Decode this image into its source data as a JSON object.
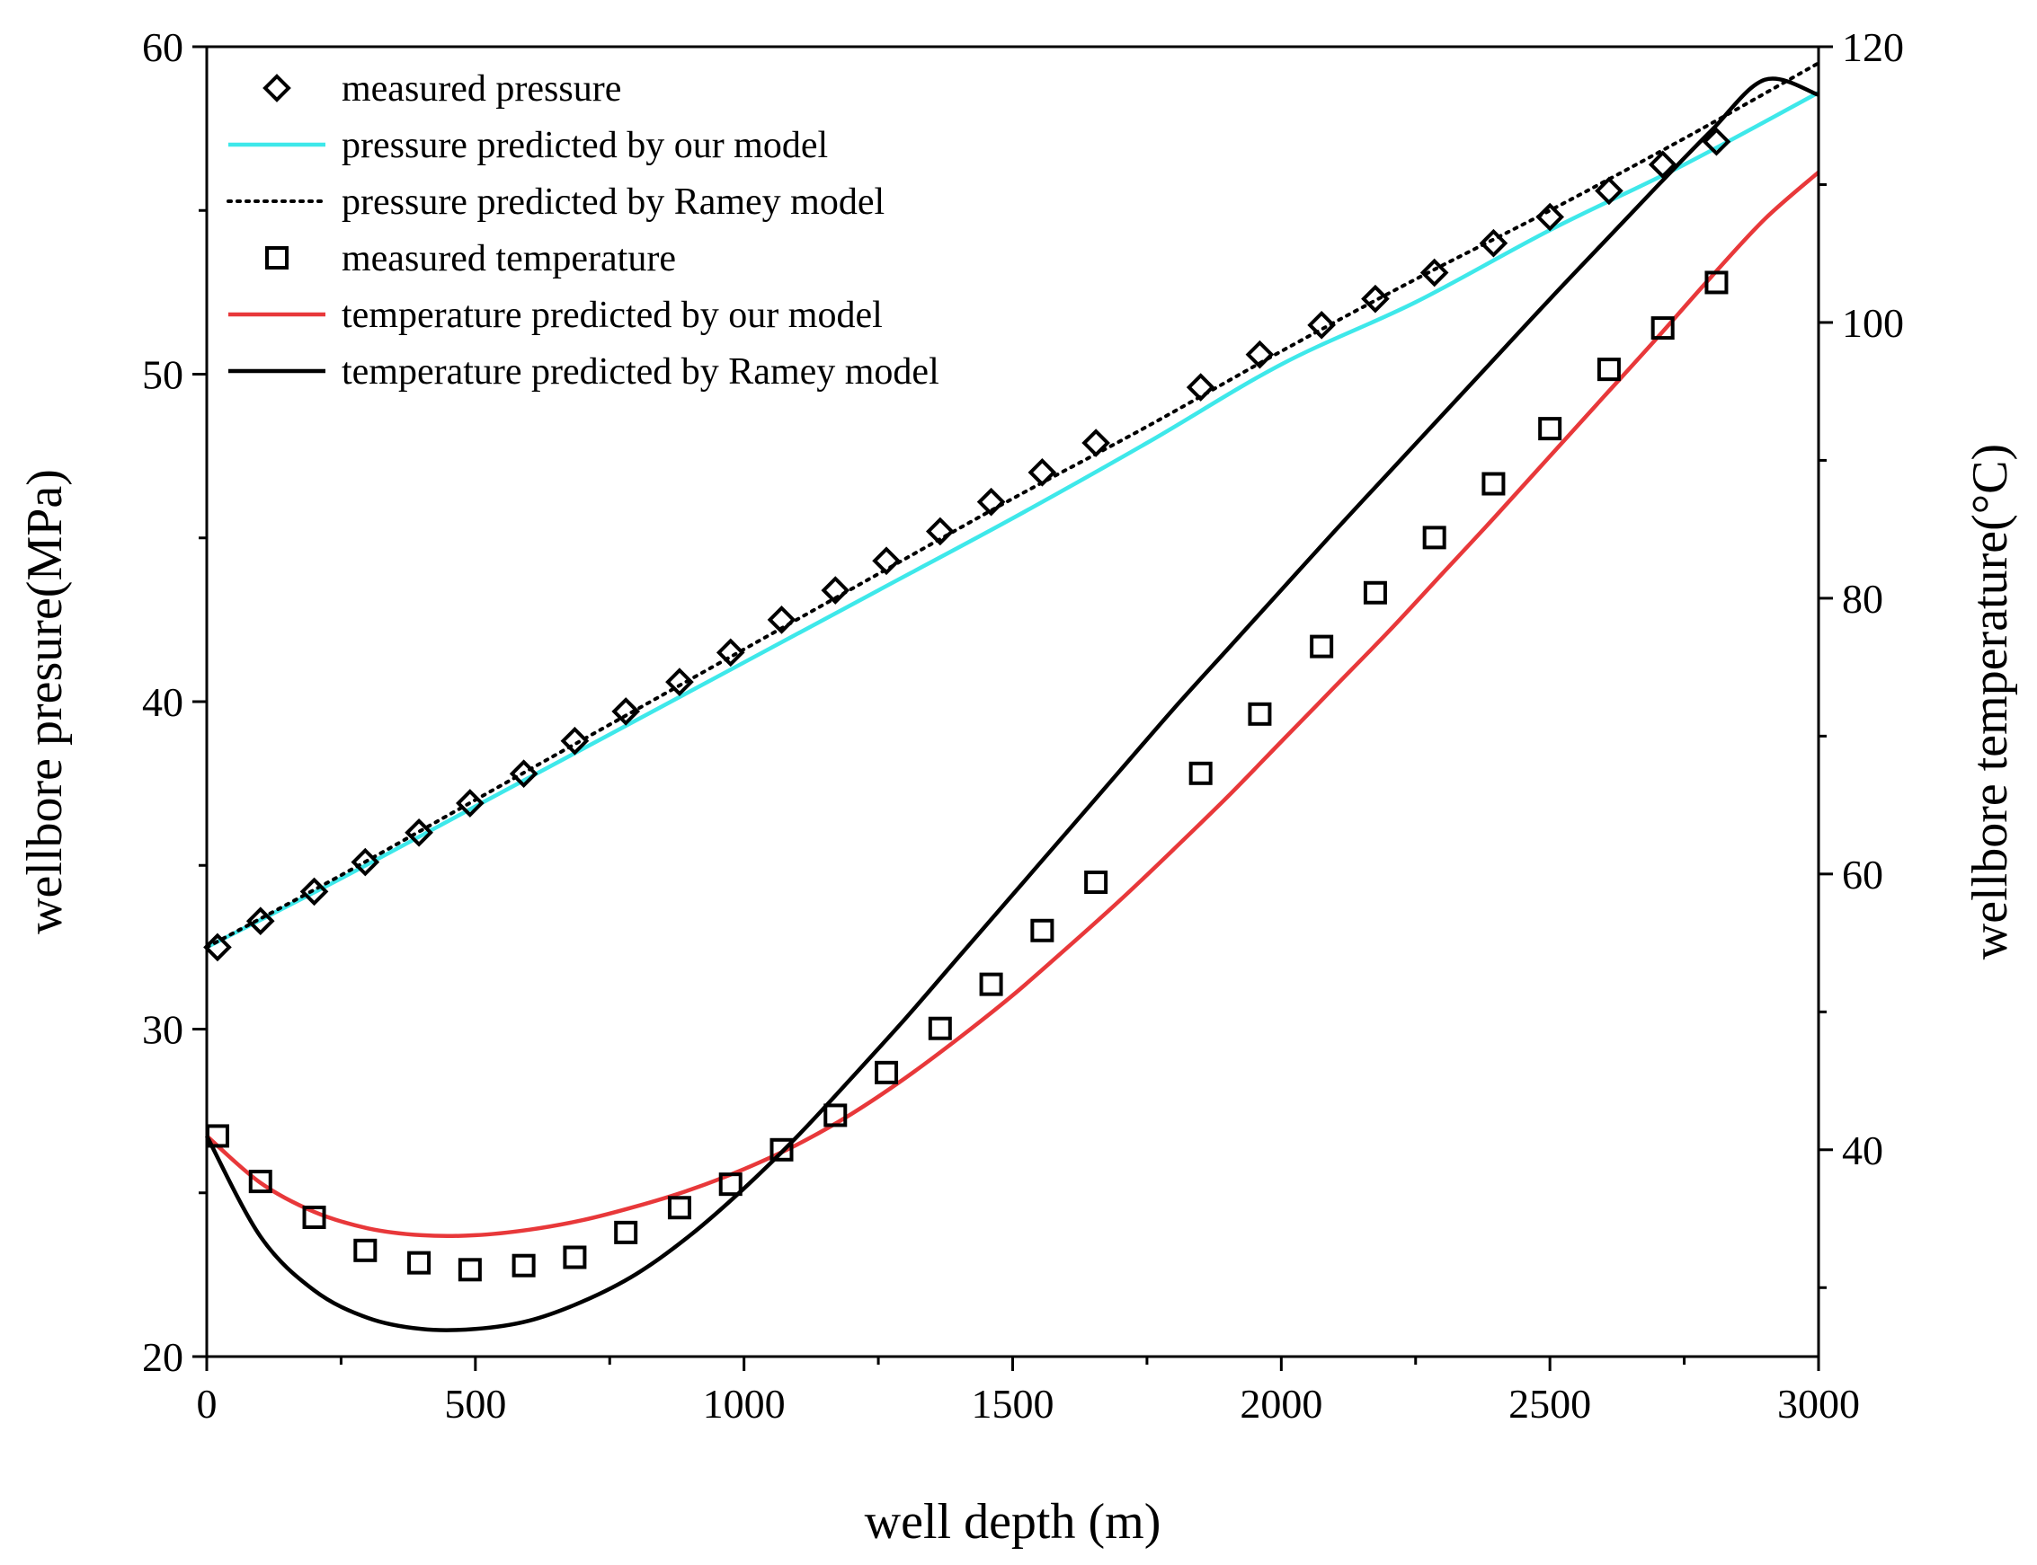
{
  "chart_data": {
    "type": "line",
    "xlabel": "well depth (m)",
    "ylabel_left": "wellbore presure(MPa)",
    "ylabel_right": "wellbore temperature(°C)",
    "xlim": [
      0,
      3000
    ],
    "ylim_left": [
      20,
      60
    ],
    "ylim_right": [
      25,
      120
    ],
    "x_ticks": [
      0,
      500,
      1000,
      1500,
      2000,
      2500,
      3000
    ],
    "x_tick_labels": [
      "0",
      "500",
      "1000",
      "1500",
      "2000",
      "2500",
      "3000"
    ],
    "x_minor_ticks": [
      250,
      750,
      1250,
      1750,
      2250,
      2750
    ],
    "y_left_ticks": [
      20,
      30,
      40,
      50,
      60
    ],
    "y_left_tick_labels": [
      "20",
      "30",
      "40",
      "50",
      "60"
    ],
    "y_left_minor_ticks": [
      25,
      35,
      45,
      55
    ],
    "y_right_ticks": [
      40,
      60,
      80,
      100,
      120
    ],
    "y_right_tick_labels": [
      "40",
      "60",
      "80",
      "100",
      "120"
    ],
    "y_right_minor_ticks": [
      30,
      50,
      70,
      90,
      110
    ],
    "grid": false,
    "legend_position": "top-left",
    "legend": [
      {
        "label": "measured pressure",
        "style": "marker",
        "marker": "diamond",
        "color": "#000000"
      },
      {
        "label": "pressure predicted by our model",
        "style": "line",
        "color": "#3ee8ea"
      },
      {
        "label": "pressure predicted by Ramey model",
        "style": "dotted",
        "color": "#000000"
      },
      {
        "label": "measured temperature",
        "style": "marker",
        "marker": "square",
        "color": "#000000"
      },
      {
        "label": "temperature predicted by our model",
        "style": "line",
        "color": "#e8383a"
      },
      {
        "label": "temperature predicted by Ramey model",
        "style": "line",
        "color": "#000000"
      }
    ],
    "series": [
      {
        "name": "measured pressure",
        "axis": "left",
        "kind": "marker",
        "marker": "diamond",
        "color": "#000000",
        "x": [
          20,
          100,
          200,
          295,
          395,
          490,
          590,
          685,
          780,
          880,
          975,
          1070,
          1170,
          1265,
          1365,
          1460,
          1555,
          1655,
          1850,
          1960,
          2075,
          2175,
          2285,
          2395,
          2500,
          2610,
          2710,
          2810
        ],
        "y": [
          32.5,
          33.3,
          34.2,
          35.1,
          36.0,
          36.9,
          37.8,
          38.8,
          39.7,
          40.6,
          41.5,
          42.5,
          43.4,
          44.3,
          45.2,
          46.1,
          47.0,
          47.9,
          49.6,
          50.6,
          51.5,
          52.3,
          53.1,
          54.0,
          54.8,
          55.6,
          56.4,
          57.1
        ]
      },
      {
        "name": "pressure predicted by our model",
        "axis": "left",
        "kind": "line",
        "color": "#3ee8ea",
        "x": [
          0,
          250,
          500,
          750,
          1000,
          1250,
          1500,
          1750,
          2000,
          2250,
          2500,
          2750,
          3000
        ],
        "y": [
          32.5,
          34.6,
          36.8,
          39.0,
          41.2,
          43.4,
          45.6,
          47.9,
          50.3,
          52.2,
          54.4,
          56.4,
          58.6
        ]
      },
      {
        "name": "pressure predicted by Ramey model",
        "axis": "left",
        "kind": "dotted",
        "color": "#000000",
        "x": [
          0,
          250,
          500,
          750,
          1000,
          1250,
          1500,
          1750,
          2000,
          2250,
          2500,
          2750,
          3000
        ],
        "y": [
          32.5,
          34.7,
          37.0,
          39.3,
          41.6,
          43.9,
          46.2,
          48.4,
          50.7,
          52.9,
          55.0,
          57.2,
          59.5
        ]
      },
      {
        "name": "measured temperature",
        "axis": "right",
        "kind": "marker",
        "marker": "square",
        "color": "#000000",
        "x": [
          20,
          100,
          200,
          295,
          395,
          490,
          590,
          685,
          780,
          880,
          975,
          1070,
          1170,
          1265,
          1365,
          1460,
          1555,
          1655,
          1850,
          1960,
          2075,
          2175,
          2285,
          2395,
          2500,
          2610,
          2710,
          2810
        ],
        "y": [
          41.0,
          37.7,
          35.1,
          32.7,
          31.8,
          31.3,
          31.6,
          32.2,
          34.0,
          35.8,
          37.5,
          40.0,
          42.5,
          45.6,
          48.8,
          52.0,
          55.9,
          59.4,
          67.3,
          71.6,
          76.5,
          80.4,
          84.4,
          88.3,
          92.3,
          96.6,
          99.6,
          102.9
        ]
      },
      {
        "name": "temperature predicted by our model",
        "axis": "right",
        "kind": "line",
        "color": "#e8383a",
        "x": [
          0,
          100,
          200,
          300,
          400,
          500,
          600,
          700,
          800,
          900,
          1000,
          1100,
          1200,
          1300,
          1400,
          1500,
          1600,
          1700,
          1800,
          1900,
          2000,
          2100,
          2200,
          2300,
          2400,
          2500,
          2600,
          2700,
          2800,
          2900,
          3000
        ],
        "y": [
          41.0,
          37.6,
          35.5,
          34.3,
          33.8,
          33.8,
          34.2,
          34.9,
          35.9,
          37.1,
          38.6,
          40.4,
          42.6,
          45.2,
          48.1,
          51.2,
          54.6,
          58.1,
          61.8,
          65.6,
          69.6,
          73.6,
          77.6,
          81.8,
          86.0,
          90.3,
          94.6,
          98.9,
          103.3,
          107.5,
          110.9
        ]
      },
      {
        "name": "temperature predicted by Ramey model",
        "axis": "right",
        "kind": "line",
        "color": "#000000",
        "x": [
          0,
          100,
          200,
          300,
          400,
          500,
          600,
          700,
          800,
          900,
          1000,
          1100,
          1200,
          1300,
          1400,
          1500,
          1600,
          1700,
          1800,
          1900,
          2000,
          2100,
          2200,
          2300,
          2400,
          2500,
          2600,
          2700,
          2800,
          2900,
          3000
        ],
        "y": [
          41.0,
          33.7,
          29.8,
          27.8,
          27.0,
          27.0,
          27.6,
          29.0,
          31.0,
          33.8,
          37.2,
          41.0,
          45.2,
          49.5,
          54.0,
          58.5,
          63.0,
          67.5,
          72.0,
          76.3,
          80.6,
          84.9,
          89.1,
          93.3,
          97.5,
          101.7,
          105.8,
          109.9,
          113.9,
          117.6,
          116.5
        ]
      }
    ]
  }
}
